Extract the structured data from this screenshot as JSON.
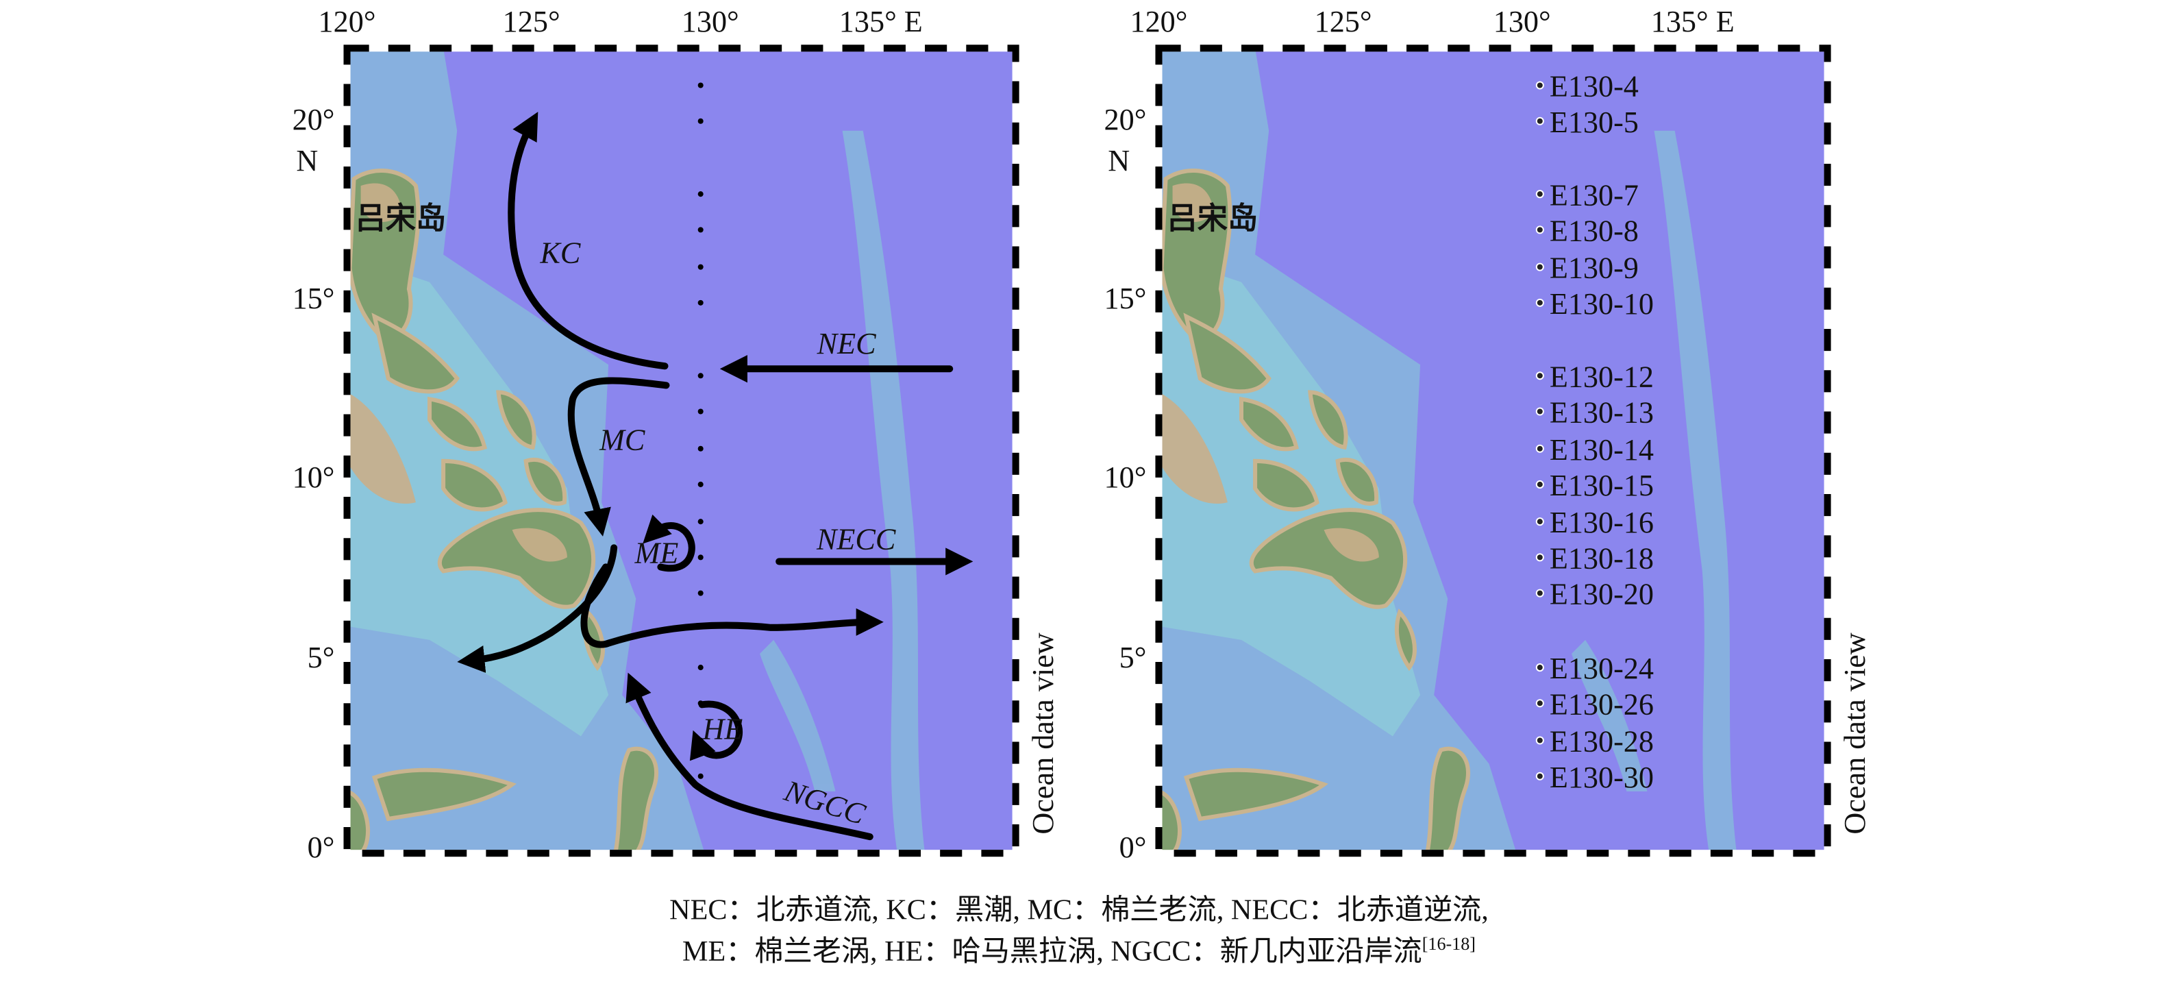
{
  "axes": {
    "lon_labels": [
      "120°",
      "125°",
      "130°",
      "135° E"
    ],
    "lat_labels": [
      "20°",
      "15°",
      "10°",
      "5°",
      "0°"
    ],
    "lat_unit": "N"
  },
  "left_panel": {
    "island_label": "吕宋岛",
    "currents": [
      "KC",
      "NEC",
      "MC",
      "ME",
      "NECC",
      "HE",
      "NGCC"
    ],
    "credit": "Ocean data view"
  },
  "right_panel": {
    "island_label": "吕宋岛",
    "stations": [
      "E130-4",
      "E130-5",
      "E130-7",
      "E130-8",
      "E130-9",
      "E130-10",
      "E130-12",
      "E130-13",
      "E130-14",
      "E130-15",
      "E130-16",
      "E130-18",
      "E130-20",
      "E130-24",
      "E130-26",
      "E130-28",
      "E130-30"
    ],
    "credit": "Ocean data view"
  },
  "caption": {
    "line1": "NEC：北赤道流, KC：黑潮, MC：棉兰老流, NECC：北赤道逆流,",
    "line2": "ME：棉兰老涡, HE：哈马黑拉涡, NGCC：新几内亚沿岸流",
    "reference": "[16-18]"
  }
}
